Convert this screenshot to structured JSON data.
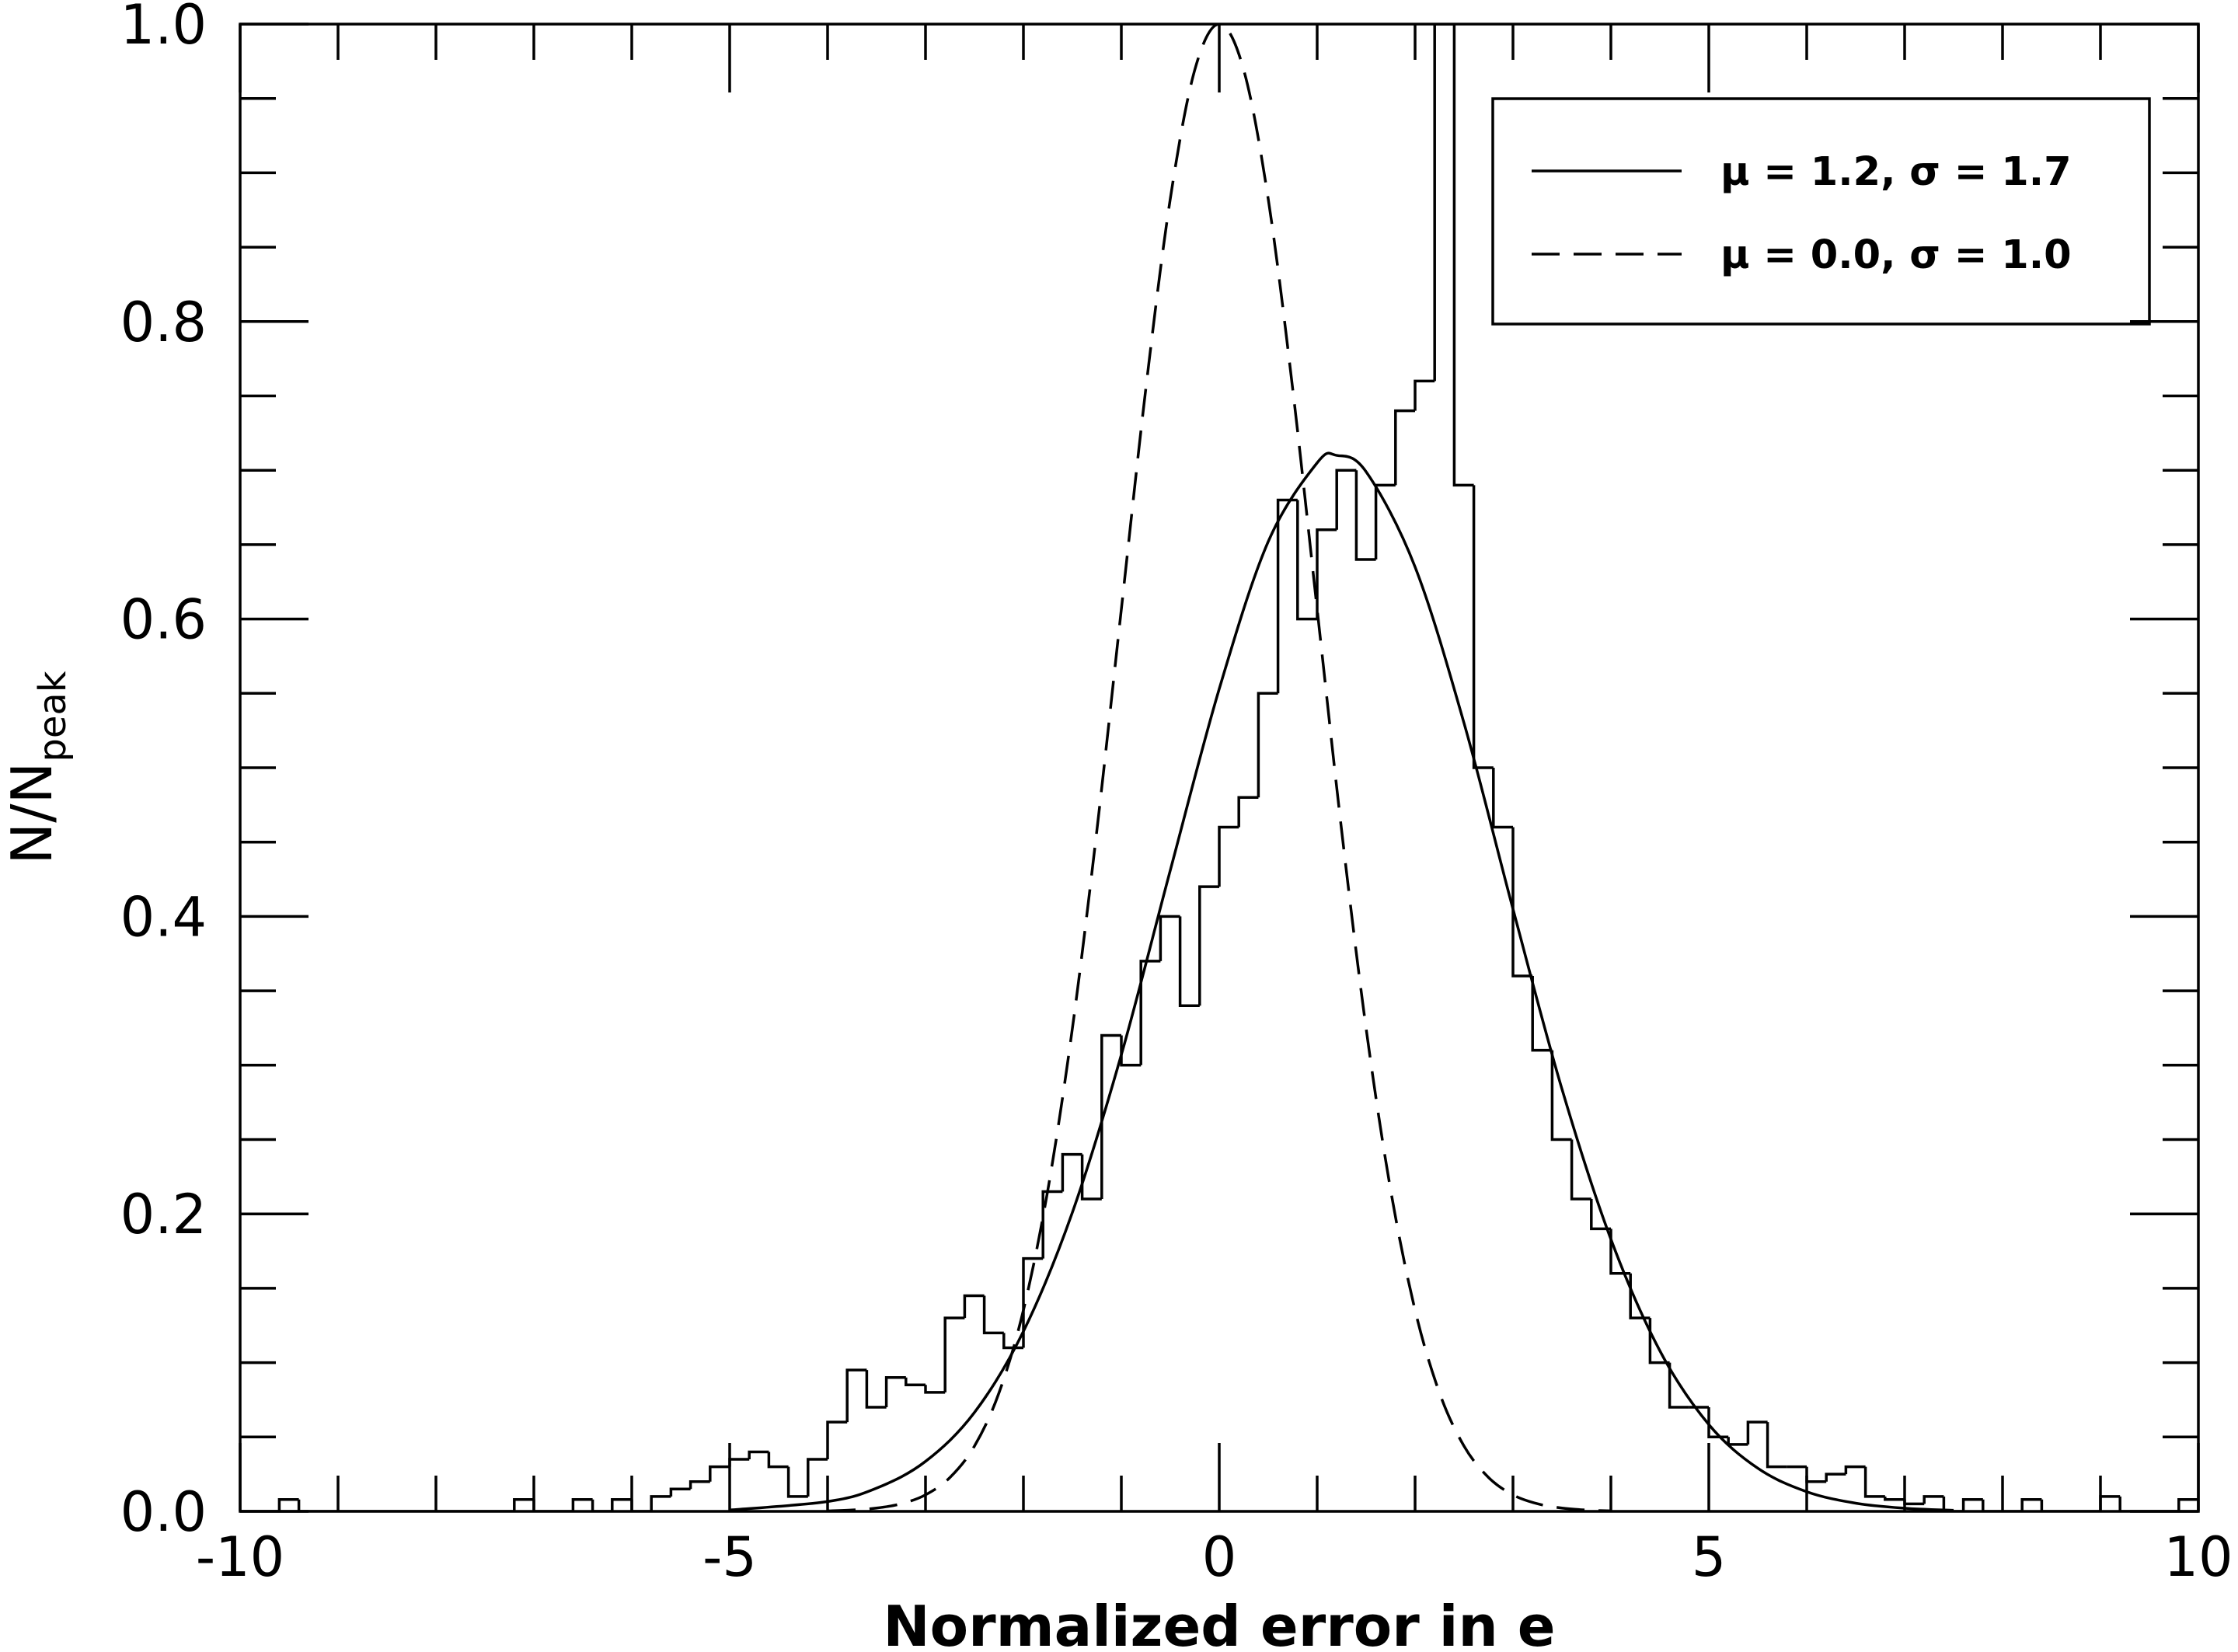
{
  "chart_data": {
    "type": "histogram",
    "xlabel": "Normalized error in e",
    "ylabel": "N/N",
    "ylabel_sub": "peak",
    "color": "#000000",
    "xlim": [
      -10,
      10
    ],
    "ylim": [
      0,
      1
    ],
    "xticks": [
      -10,
      -5,
      0,
      5,
      10
    ],
    "yticks": [
      {
        "value": 0,
        "label": "0.0"
      },
      0.2,
      0.4,
      0.6,
      0.8,
      {
        "value": 1,
        "label": "1.0"
      }
    ],
    "x_minor_ticks": [
      -9,
      -8,
      -7,
      -6,
      -4,
      -3,
      -2,
      -1,
      1,
      2,
      3,
      4,
      6,
      7,
      8,
      9
    ],
    "y_minor_ticks": [
      0.05,
      0.1,
      0.15,
      0.25,
      0.3,
      0.35,
      0.45,
      0.5,
      0.55,
      0.65,
      0.7,
      0.75,
      0.85,
      0.9,
      0.95
    ],
    "legend_position": "upper right",
    "bins": [
      -10,
      -9.8,
      -9.6,
      -9.4,
      -9.2,
      -9,
      -8.8,
      -8.6,
      -8.4,
      -8.2,
      -8,
      -7.8,
      -7.6,
      -7.4,
      -7.2,
      -7,
      -6.8,
      -6.6,
      -6.4,
      -6.2,
      -6,
      -5.8,
      -5.6,
      -5.4,
      -5.2,
      -5,
      -4.8,
      -4.6,
      -4.4,
      -4.2,
      -4,
      -3.8,
      -3.6,
      -3.4,
      -3.2,
      -3,
      -2.8,
      -2.6,
      -2.4,
      -2.2,
      -2,
      -1.8,
      -1.6,
      -1.4,
      -1.2,
      -1,
      -0.8,
      -0.6,
      -0.4,
      -0.2,
      0,
      0.2,
      0.4,
      0.6,
      0.8,
      1,
      1.2,
      1.4,
      1.6,
      1.8,
      2,
      2.2,
      2.4,
      2.6,
      2.8,
      3,
      3.2,
      3.4,
      3.6,
      3.8,
      4,
      4.2,
      4.4,
      4.6,
      4.8,
      5,
      5.2,
      5.4,
      5.6,
      5.8,
      6,
      6.2,
      6.4,
      6.6,
      6.8,
      7,
      7.2,
      7.4,
      7.6,
      7.8,
      8,
      8.2,
      8.4,
      8.6,
      8.8,
      9,
      9.2,
      9.4,
      9.6,
      9.8,
      10
    ],
    "values": [
      0,
      0,
      0.008,
      0,
      0,
      0,
      0,
      0,
      0,
      0,
      0,
      0,
      0,
      0,
      0.008,
      0,
      0,
      0.008,
      0,
      0.008,
      0,
      0.01,
      0.015,
      0.02,
      0.03,
      0.035,
      0.04,
      0.03,
      0.01,
      0.035,
      0.06,
      0.095,
      0.07,
      0.09,
      0.085,
      0.08,
      0.13,
      0.145,
      0.12,
      0.11,
      0.17,
      0.215,
      0.24,
      0.21,
      0.32,
      0.3,
      0.37,
      0.4,
      0.34,
      0.42,
      0.46,
      0.48,
      0.55,
      0.68,
      0.6,
      0.66,
      0.7,
      0.64,
      0.69,
      0.74,
      0.76,
      1.0,
      0.69,
      0.5,
      0.46,
      0.36,
      0.31,
      0.25,
      0.21,
      0.19,
      0.16,
      0.13,
      0.1,
      0.07,
      0.07,
      0.05,
      0.045,
      0.06,
      0.03,
      0.03,
      0.02,
      0.025,
      0.03,
      0.01,
      0.008,
      0.005,
      0.01,
      0,
      0.008,
      0,
      0,
      0.008,
      0,
      0,
      0,
      0.01,
      0,
      0,
      0,
      0.008
    ],
    "overlays": [
      {
        "type": "line",
        "name": "μ = 1.2, σ = 1.7",
        "color": "#000000",
        "linestyle": "solid",
        "x": [
          -5,
          -4,
          -3.5,
          -3,
          -2.5,
          -2,
          -1.5,
          -1,
          -0.5,
          0,
          0.5,
          1,
          1.2,
          1.5,
          2,
          2.5,
          3,
          3.5,
          4,
          4.5,
          5,
          5.5,
          6,
          6.5,
          7,
          7.5
        ],
        "values": [
          0.0009,
          0.0066,
          0.0156,
          0.0336,
          0.0665,
          0.121,
          0.201,
          0.307,
          0.431,
          0.553,
          0.652,
          0.705,
          0.71,
          0.699,
          0.635,
          0.53,
          0.405,
          0.284,
          0.183,
          0.108,
          0.0584,
          0.029,
          0.0132,
          0.0055,
          0.0021,
          0.0007
        ]
      },
      {
        "type": "line",
        "name": "μ = 0.0, σ = 1.0",
        "color": "#000000",
        "linestyle": "dashed",
        "x": [
          -4,
          -3.75,
          -3.5,
          -3.25,
          -3,
          -2.75,
          -2.5,
          -2.25,
          -2,
          -1.75,
          -1.5,
          -1.25,
          -1,
          -0.75,
          -0.5,
          -0.25,
          0,
          0.25,
          0.5,
          0.75,
          1,
          1.25,
          1.5,
          1.75,
          2,
          2.25,
          2.5,
          2.75,
          3,
          3.25,
          3.5,
          3.75,
          4
        ],
        "values": [
          0.0003,
          0.0009,
          0.0022,
          0.0051,
          0.0111,
          0.0228,
          0.0439,
          0.0796,
          0.1353,
          0.2163,
          0.3247,
          0.4578,
          0.6065,
          0.7548,
          0.8825,
          0.9692,
          1,
          0.9692,
          0.8825,
          0.7548,
          0.6065,
          0.4578,
          0.3247,
          0.2163,
          0.1353,
          0.0796,
          0.0439,
          0.0228,
          0.0111,
          0.0051,
          0.0022,
          0.0009,
          0.0003
        ]
      }
    ]
  }
}
